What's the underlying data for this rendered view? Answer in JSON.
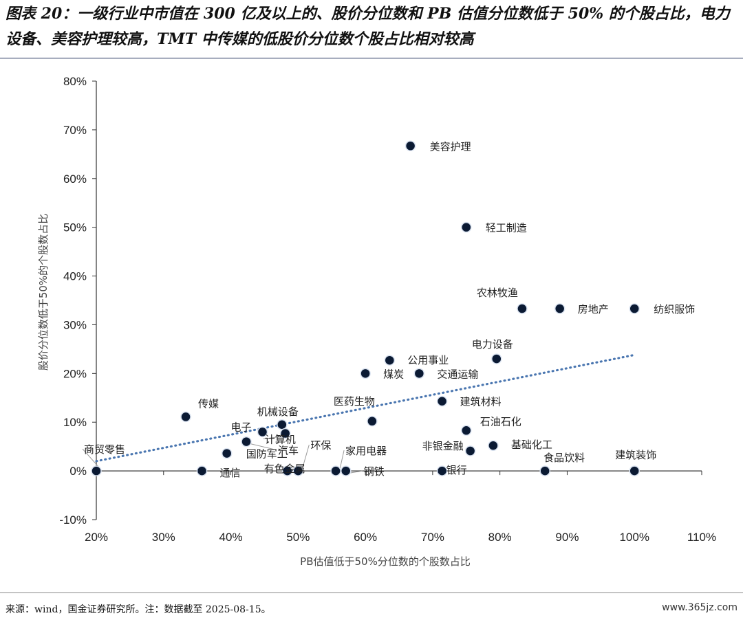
{
  "title": "图表 20：一级行业中市值在 300 亿及以上的、股价分位数和 PB 估值分位数低于 50% 的个股占比，电力设备、美容护理较高，TMT 中传媒的低股价分位数个股占比相对较高",
  "source": "来源：wind，国金证券研究所。注：数据截至 2025-08-15。",
  "watermark": "www.365jz.com",
  "colors": {
    "marker_fill": "#0b1a33",
    "marker_stroke": "#d9e2f0",
    "trendline": "#4a76b0",
    "axis": "#333333",
    "rule": "#1f2d5a"
  },
  "chart_data": {
    "type": "scatter",
    "xlabel": "PB估值低于50%分位数的个股数占比",
    "ylabel": "股价分位数低于50%的个股数占比",
    "xlim": [
      0.2,
      1.1
    ],
    "ylim": [
      -0.1,
      0.8
    ],
    "x_ticks": [
      0.2,
      0.3,
      0.4,
      0.5,
      0.6,
      0.7,
      0.8,
      0.9,
      1.0,
      1.1
    ],
    "x_tick_labels": [
      "20%",
      "30%",
      "40%",
      "50%",
      "60%",
      "70%",
      "80%",
      "90%",
      "100%",
      "110%"
    ],
    "y_ticks": [
      -0.1,
      0.0,
      0.1,
      0.2,
      0.3,
      0.4,
      0.5,
      0.6,
      0.7,
      0.8
    ],
    "y_tick_labels": [
      "-10%",
      "0%",
      "10%",
      "20%",
      "30%",
      "40%",
      "50%",
      "60%",
      "70%",
      "80%"
    ],
    "trendline": {
      "style": "dotted",
      "from": [
        0.2,
        0.02
      ],
      "to": [
        1.0,
        0.238
      ]
    },
    "points": [
      {
        "label": "美容护理",
        "x": 0.667,
        "y": 0.667
      },
      {
        "label": "轻工制造",
        "x": 0.75,
        "y": 0.5
      },
      {
        "label": "农林牧渔",
        "x": 0.833,
        "y": 0.333
      },
      {
        "label": "房地产",
        "x": 0.889,
        "y": 0.333
      },
      {
        "label": "纺织服饰",
        "x": 1.0,
        "y": 0.333
      },
      {
        "label": "电力设备",
        "x": 0.795,
        "y": 0.23
      },
      {
        "label": "公用事业",
        "x": 0.636,
        "y": 0.227
      },
      {
        "label": "煤炭",
        "x": 0.6,
        "y": 0.2
      },
      {
        "label": "交通运输",
        "x": 0.68,
        "y": 0.2
      },
      {
        "label": "建筑材料",
        "x": 0.714,
        "y": 0.143
      },
      {
        "label": "传媒",
        "x": 0.333,
        "y": 0.111
      },
      {
        "label": "医药生物",
        "x": 0.61,
        "y": 0.102
      },
      {
        "label": "机械设备",
        "x": 0.476,
        "y": 0.095
      },
      {
        "label": "石油石化",
        "x": 0.75,
        "y": 0.083
      },
      {
        "label": "电子",
        "x": 0.447,
        "y": 0.08
      },
      {
        "label": "计算机",
        "x": 0.481,
        "y": 0.077
      },
      {
        "label": "汽车",
        "x": 0.423,
        "y": 0.06
      },
      {
        "label": "基础化工",
        "x": 0.79,
        "y": 0.052
      },
      {
        "label": "非银金融",
        "x": 0.756,
        "y": 0.041
      },
      {
        "label": "国防军工",
        "x": 0.394,
        "y": 0.036
      },
      {
        "label": "商贸零售",
        "x": 0.2,
        "y": 0.0
      },
      {
        "label": "通信",
        "x": 0.357,
        "y": 0.0
      },
      {
        "label": "有色金属",
        "x": 0.484,
        "y": 0.0
      },
      {
        "label": "环保",
        "x": 0.5,
        "y": 0.0
      },
      {
        "label": "家用电器",
        "x": 0.556,
        "y": 0.0
      },
      {
        "label": "钢铁",
        "x": 0.571,
        "y": 0.0
      },
      {
        "label": "银行",
        "x": 0.714,
        "y": 0.0
      },
      {
        "label": "食品饮料",
        "x": 0.867,
        "y": 0.0
      },
      {
        "label": "建筑装饰",
        "x": 1.0,
        "y": 0.0
      }
    ]
  }
}
